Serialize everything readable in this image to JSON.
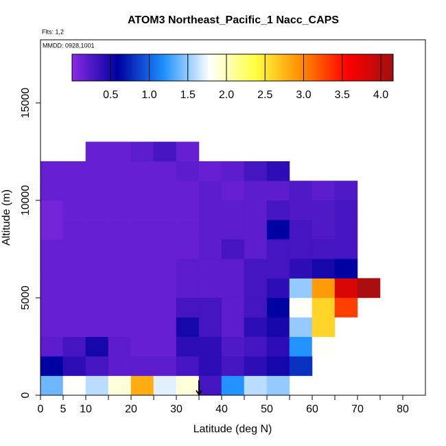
{
  "chart_data": {
    "type": "heatmap",
    "title": "ATOM3 Northeast_Pacific_1 Nacc_CAPS",
    "subtitle": "Flts: 1,2",
    "annotation": "MMDD: 0928,1001",
    "xlabel": "Latitude (deg N)",
    "ylabel": "Altitude (m)",
    "xlim": [
      0,
      85
    ],
    "ylim": [
      0,
      18240
    ],
    "xticks": [
      0,
      5,
      10,
      20,
      30,
      40,
      50,
      60,
      70,
      80
    ],
    "xminor_ticks": [
      15,
      25,
      35,
      45,
      55,
      65,
      75
    ],
    "yticks": [
      0,
      5000,
      10000,
      15000
    ],
    "arrow_x": 35,
    "xbins": [
      0,
      5,
      10,
      15,
      20,
      25,
      30,
      35,
      40,
      45,
      50,
      55,
      60,
      65,
      70,
      75
    ],
    "ybins": [
      0,
      1000,
      2000,
      3000,
      4000,
      5000,
      6000,
      7000,
      8000,
      9000,
      10000,
      11000,
      12000,
      13000
    ],
    "z": [
      [
        1.4,
        1.8,
        1.6,
        1.9,
        2.8,
        1.7,
        1.9,
        0.3,
        1.2,
        1.6,
        1.5,
        null,
        null,
        null,
        null
      ],
      [
        0.6,
        0.4,
        0.3,
        0.2,
        0.2,
        0.2,
        0.3,
        0.4,
        0.3,
        0.4,
        0.5,
        0.8,
        null,
        null,
        null
      ],
      [
        0.2,
        0.3,
        0.5,
        0.2,
        0.15,
        0.15,
        0.4,
        0.4,
        0.25,
        0.3,
        0.4,
        1.2,
        1.8,
        null,
        null
      ],
      [
        0.15,
        0.15,
        0.15,
        0.15,
        0.15,
        0.15,
        0.5,
        0.3,
        0.2,
        0.4,
        0.5,
        1.5,
        2.6,
        null,
        null
      ],
      [
        0.15,
        0.15,
        0.15,
        0.15,
        0.15,
        0.15,
        0.3,
        0.3,
        0.2,
        0.3,
        0.6,
        1.8,
        2.6,
        3.3,
        null
      ],
      [
        0.15,
        0.15,
        0.15,
        0.15,
        0.15,
        0.15,
        0.2,
        0.2,
        0.2,
        0.3,
        0.4,
        1.5,
        2.9,
        3.8,
        4.1
      ],
      [
        0.15,
        0.15,
        0.15,
        0.15,
        0.15,
        0.15,
        0.2,
        0.2,
        0.2,
        0.3,
        0.3,
        0.4,
        0.5,
        0.6,
        null
      ],
      [
        0.15,
        0.15,
        0.15,
        0.15,
        0.15,
        0.15,
        0.15,
        0.2,
        0.3,
        0.2,
        0.3,
        0.3,
        0.3,
        0.3,
        null
      ],
      [
        0.1,
        0.15,
        0.15,
        0.15,
        0.15,
        0.15,
        0.15,
        0.2,
        0.2,
        0.2,
        0.6,
        0.3,
        0.25,
        0.3,
        null
      ],
      [
        0.1,
        0.15,
        0.15,
        0.15,
        0.15,
        0.15,
        0.15,
        0.2,
        0.2,
        0.2,
        0.3,
        0.25,
        0.25,
        0.3,
        null
      ],
      [
        0.15,
        0.15,
        0.15,
        0.15,
        0.15,
        0.15,
        0.15,
        0.2,
        0.15,
        0.2,
        0.2,
        0.25,
        0.2,
        0.25,
        null
      ],
      [
        0.15,
        0.15,
        0.15,
        0.15,
        0.15,
        0.15,
        0.2,
        0.15,
        0.2,
        0.3,
        0.4,
        null,
        null,
        null,
        null
      ],
      [
        null,
        null,
        0.15,
        0.15,
        0.2,
        0.3,
        0.15,
        null,
        null,
        null,
        null,
        null,
        null,
        null,
        null
      ]
    ],
    "colorbar": {
      "lim": [
        0,
        4.16
      ],
      "ticks": [
        0.5,
        {
          "value": 1,
          "label": "1.0"
        },
        1.5,
        {
          "value": 2,
          "label": "2.0"
        },
        2.5,
        {
          "value": 3,
          "label": "3.0"
        },
        3.5,
        {
          "value": 4,
          "label": "4.0"
        }
      ],
      "colors": [
        "#8a2be2",
        "#0000a0",
        "#1e90ff",
        "#ffffff",
        "#ffff40",
        "#ff8c00",
        "#ff0000",
        "#a01010"
      ]
    }
  }
}
